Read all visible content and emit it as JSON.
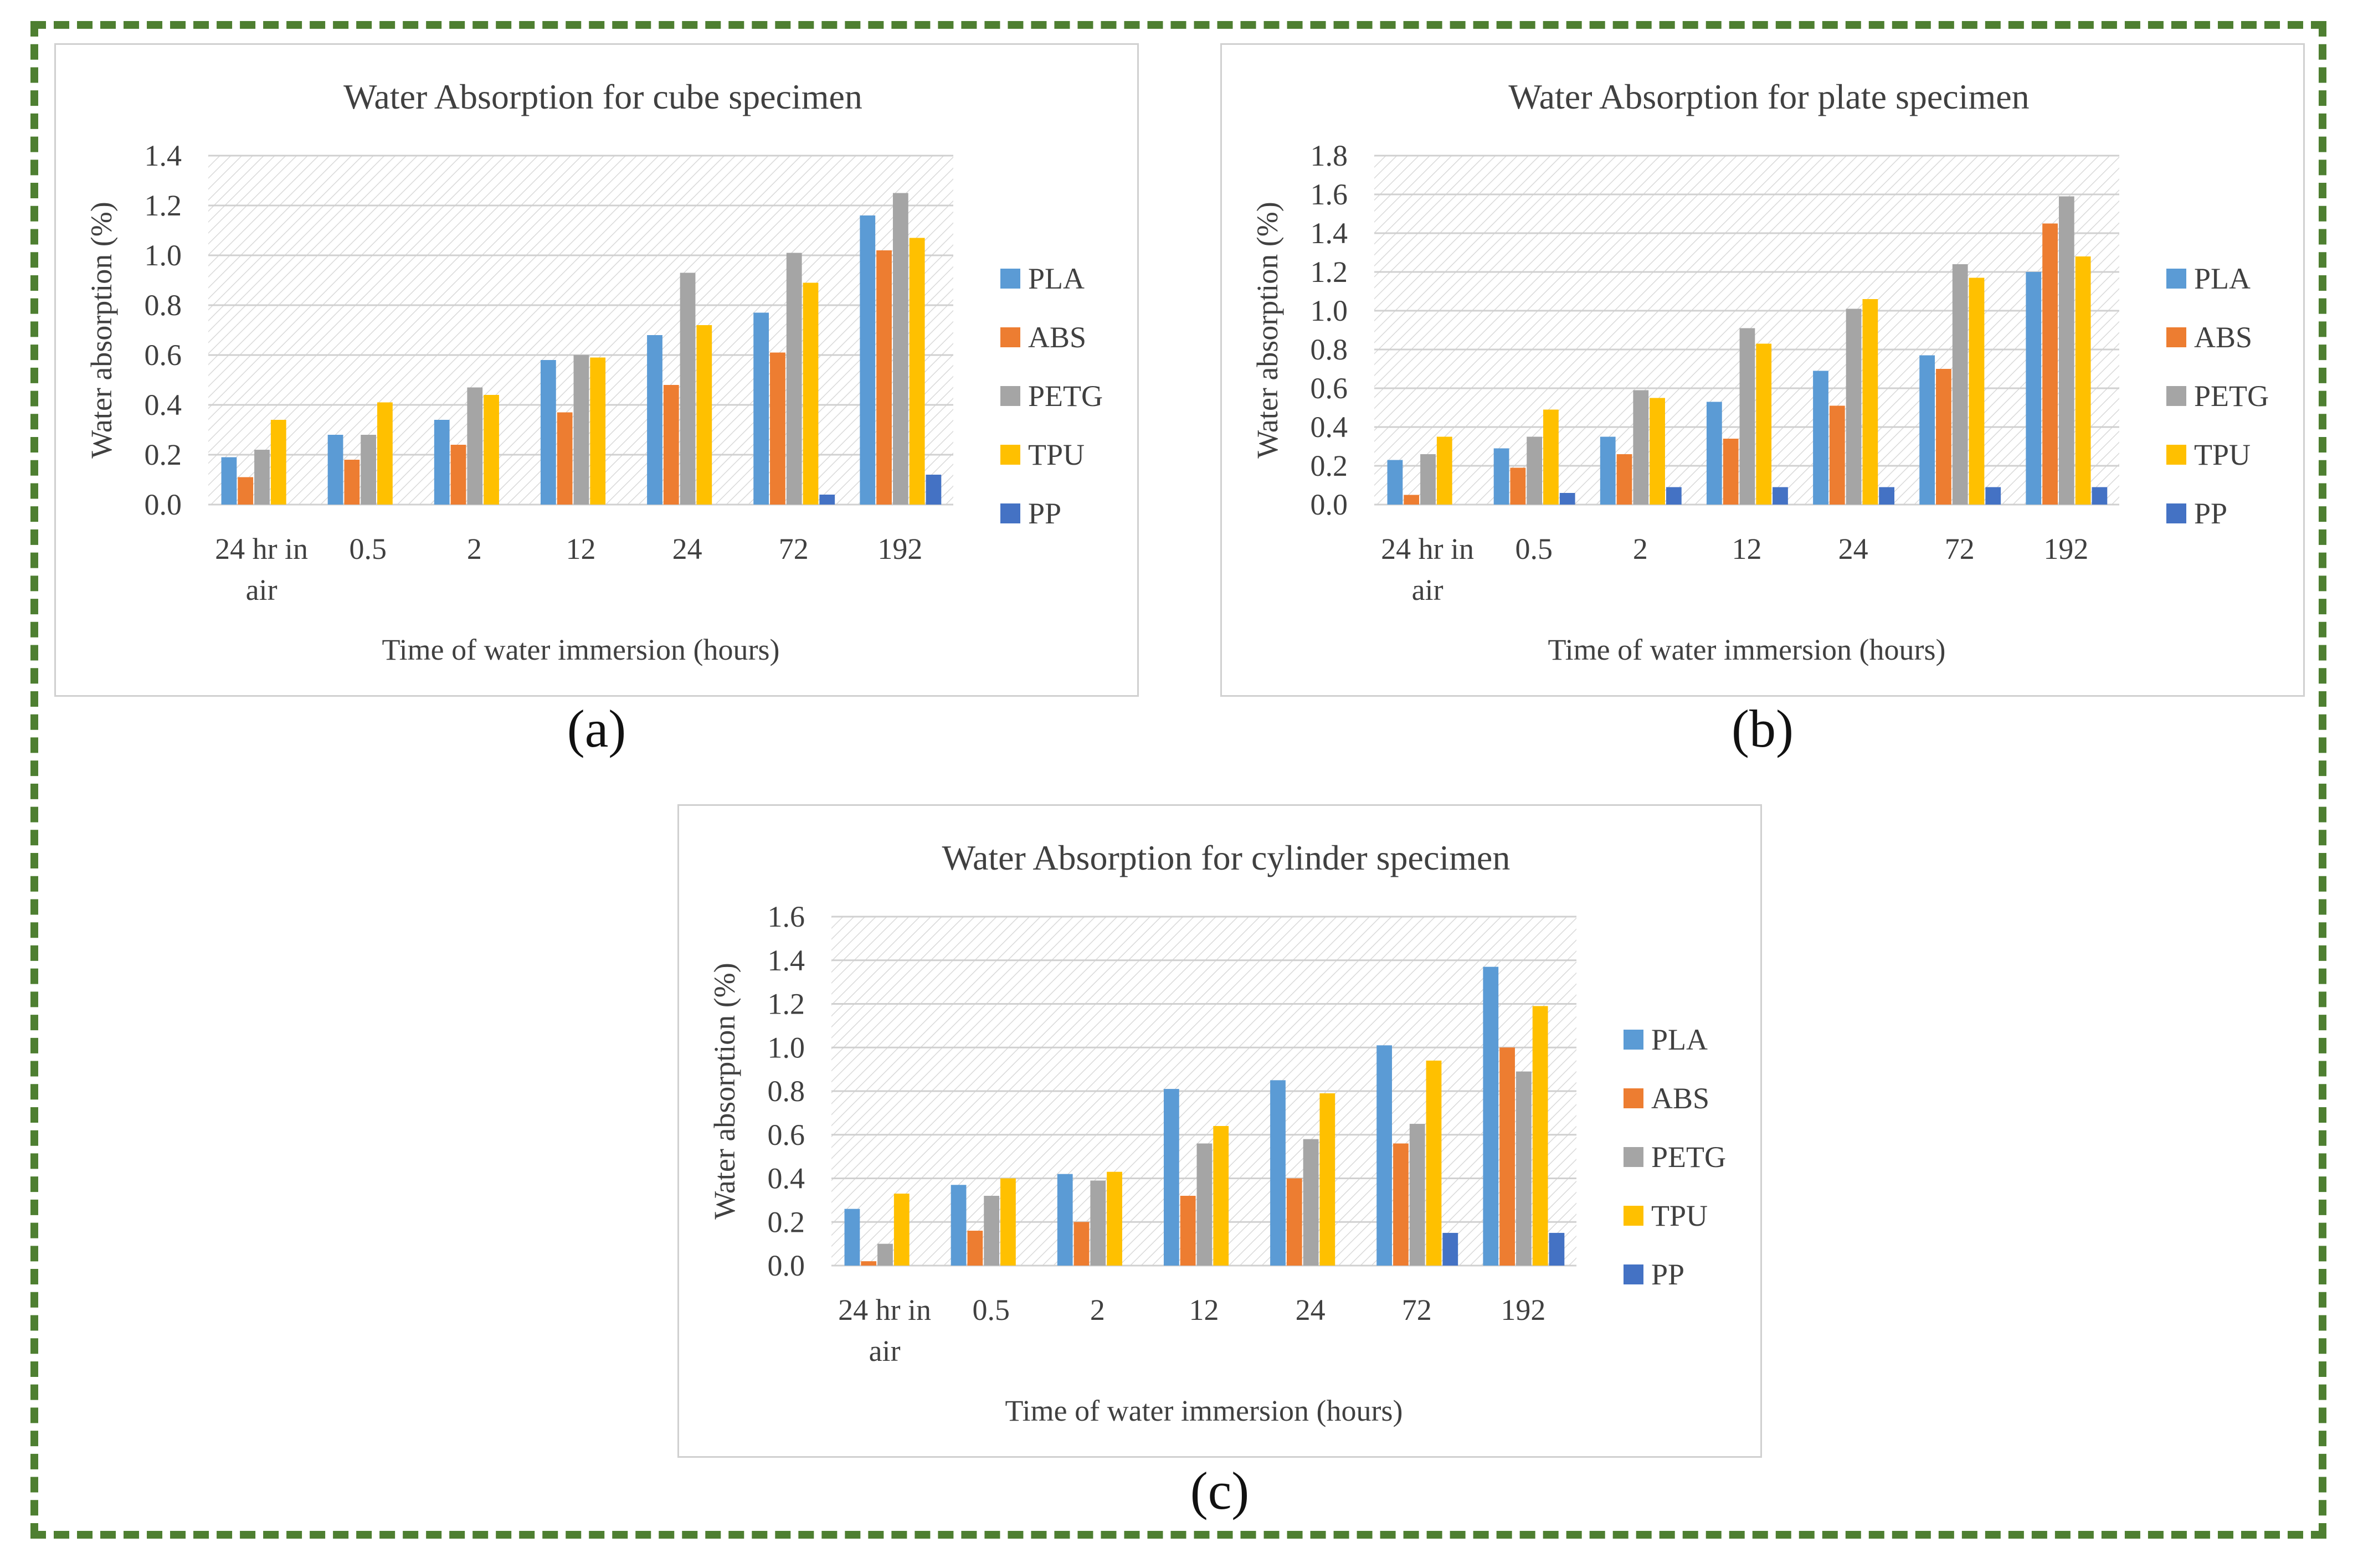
{
  "colors": {
    "PLA": "#5b9bd5",
    "ABS": "#ed7d31",
    "PETG": "#a5a5a5",
    "TPU": "#ffc000",
    "PP": "#4472c4",
    "frame": "#4e7f31"
  },
  "chart_data": [
    {
      "type": "bar",
      "title": "Water Absorption for cube specimen",
      "xlabel": "Time of water immersion (hours)",
      "ylabel": "Water absorption (%)",
      "ylim": [
        0,
        1.4
      ],
      "yticks": [
        "0.0",
        "0.2",
        "0.4",
        "0.6",
        "0.8",
        "1.0",
        "1.2",
        "1.4"
      ],
      "categories": [
        "24 hr in air",
        "0.5",
        "2",
        "12",
        "24",
        "72",
        "192"
      ],
      "legend_position": "right",
      "series": [
        {
          "name": "PLA",
          "values": [
            0.19,
            0.28,
            0.34,
            0.58,
            0.68,
            0.77,
            1.16
          ]
        },
        {
          "name": "ABS",
          "values": [
            0.11,
            0.18,
            0.24,
            0.37,
            0.48,
            0.61,
            1.02
          ]
        },
        {
          "name": "PETG",
          "values": [
            0.22,
            0.28,
            0.47,
            0.6,
            0.93,
            1.01,
            1.25
          ]
        },
        {
          "name": "TPU",
          "values": [
            0.34,
            0.41,
            0.44,
            0.59,
            0.72,
            0.89,
            1.07
          ]
        },
        {
          "name": "PP",
          "values": [
            0,
            0,
            0,
            0,
            0,
            0.04,
            0.12
          ]
        }
      ],
      "caption": "(a)"
    },
    {
      "type": "bar",
      "title": "Water Absorption for plate specimen",
      "xlabel": "Time of water immersion (hours)",
      "ylabel": "Water absorption (%)",
      "ylim": [
        0,
        1.8
      ],
      "yticks": [
        "0.0",
        "0.2",
        "0.4",
        "0.6",
        "0.8",
        "1.0",
        "1.2",
        "1.4",
        "1.6",
        "1.8"
      ],
      "categories": [
        "24 hr in air",
        "0.5",
        "2",
        "12",
        "24",
        "72",
        "192"
      ],
      "legend_position": "right",
      "series": [
        {
          "name": "PLA",
          "values": [
            0.23,
            0.29,
            0.35,
            0.53,
            0.69,
            0.77,
            1.2
          ]
        },
        {
          "name": "ABS",
          "values": [
            0.05,
            0.19,
            0.26,
            0.34,
            0.51,
            0.7,
            1.45
          ]
        },
        {
          "name": "PETG",
          "values": [
            0.26,
            0.35,
            0.59,
            0.91,
            1.01,
            1.24,
            1.59
          ]
        },
        {
          "name": "TPU",
          "values": [
            0.35,
            0.49,
            0.55,
            0.83,
            1.06,
            1.17,
            1.28
          ]
        },
        {
          "name": "PP",
          "values": [
            0,
            0.06,
            0.09,
            0.09,
            0.09,
            0.09,
            0.09
          ]
        }
      ],
      "caption": "(b)"
    },
    {
      "type": "bar",
      "title": "Water Absorption for cylinder specimen",
      "xlabel": "Time of water immersion (hours)",
      "ylabel": "Water absorption (%)",
      "ylim": [
        0,
        1.6
      ],
      "yticks": [
        "0.0",
        "0.2",
        "0.4",
        "0.6",
        "0.8",
        "1.0",
        "1.2",
        "1.4",
        "1.6"
      ],
      "categories": [
        "24 hr in air",
        "0.5",
        "2",
        "12",
        "24",
        "72",
        "192"
      ],
      "legend_position": "right",
      "series": [
        {
          "name": "PLA",
          "values": [
            0.26,
            0.37,
            0.42,
            0.81,
            0.85,
            1.01,
            1.37
          ]
        },
        {
          "name": "ABS",
          "values": [
            0.02,
            0.16,
            0.2,
            0.32,
            0.4,
            0.56,
            1.0
          ]
        },
        {
          "name": "PETG",
          "values": [
            0.1,
            0.32,
            0.39,
            0.56,
            0.58,
            0.65,
            0.89
          ]
        },
        {
          "name": "TPU",
          "values": [
            0.33,
            0.4,
            0.43,
            0.64,
            0.79,
            0.94,
            1.19
          ]
        },
        {
          "name": "PP",
          "values": [
            0,
            0,
            0,
            0,
            0,
            0.15,
            0.15
          ]
        }
      ],
      "caption": "(c)"
    }
  ]
}
